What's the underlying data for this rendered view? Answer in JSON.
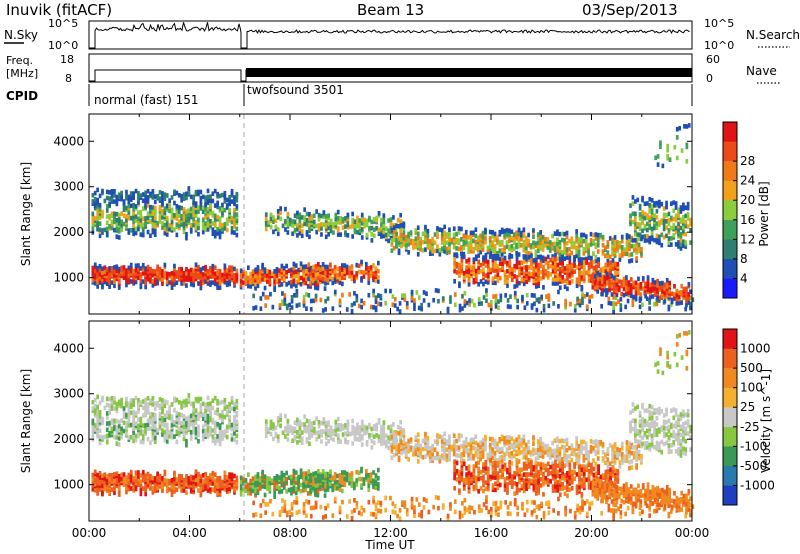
{
  "header": {
    "site": "Inuvik (fitACF)",
    "beam": "Beam 13",
    "date": "03/Sep/2013"
  },
  "summary_panels": {
    "nsky": {
      "left_label": "N.Sky",
      "left_ticks": [
        "10^5",
        "10^0"
      ],
      "right_label": "N.Search",
      "right_ticks": [
        "10^5",
        "10^0"
      ]
    },
    "freq": {
      "left_label_line1": "Freq.",
      "left_label_line2": "[MHz]",
      "left_ticks": [
        "18",
        "8"
      ],
      "right_label": "Nave",
      "right_ticks": [
        "60",
        "0"
      ]
    },
    "cpid": {
      "label": "CPID",
      "modes": [
        {
          "name": "normal (fast) 151"
        },
        {
          "name": "twofsound 3501"
        }
      ]
    }
  },
  "colors": {
    "power": [
      "#1a1aff",
      "#1f4fb5",
      "#2f7f70",
      "#3fa05a",
      "#8ccd3c",
      "#f2a21a",
      "#f07a18",
      "#ee4a18",
      "#e01414"
    ],
    "velocity": [
      "#1f3fc0",
      "#2a7ab0",
      "#3a9a55",
      "#86c840",
      "#c8c8c8",
      "#f5b030",
      "#f08a20",
      "#ee6020",
      "#e01414"
    ],
    "groundscatter": "#c0c0c0"
  },
  "chart_data": [
    {
      "type": "heatmap",
      "title": "",
      "xlabel": "",
      "ylabel": "Slant Range [km]",
      "x_ticks": [
        "00:00",
        "04:00",
        "08:00",
        "12:00",
        "16:00",
        "20:00",
        "00:00"
      ],
      "y_ticks": [
        1000,
        2000,
        3000,
        4000
      ],
      "xlim_hours": [
        0,
        24
      ],
      "ylim_km": [
        200,
        4600
      ],
      "colorbar": {
        "label": "Power [dB]",
        "ticks": [
          4,
          8,
          12,
          16,
          20,
          24,
          28
        ]
      }
    },
    {
      "type": "heatmap",
      "title": "",
      "xlabel": "Time UT",
      "ylabel": "Slant Range [km]",
      "x_ticks": [
        "00:00",
        "04:00",
        "08:00",
        "12:00",
        "16:00",
        "20:00",
        "00:00"
      ],
      "y_ticks": [
        1000,
        2000,
        3000,
        4000
      ],
      "xlim_hours": [
        0,
        24
      ],
      "ylim_km": [
        200,
        4600
      ],
      "colorbar": {
        "label": "Velocity [m s^-1]",
        "ticks": [
          1000,
          500,
          100,
          25,
          -25,
          -100,
          -500,
          -1000
        ]
      }
    }
  ]
}
